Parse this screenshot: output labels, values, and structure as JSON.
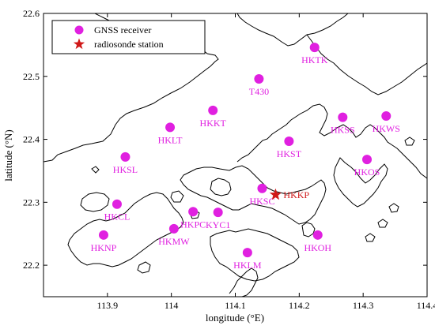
{
  "map": {
    "xlabel": "longitude (°E)",
    "ylabel": "latitude (°N)",
    "xlim": [
      113.8,
      114.4
    ],
    "ylim": [
      22.15,
      22.6
    ],
    "x_ticks": [
      "113.9",
      "114",
      "114.1",
      "114.2",
      "114.3",
      "114.4"
    ],
    "x_tick_values": [
      113.9,
      114.0,
      114.1,
      114.2,
      114.3,
      114.4
    ],
    "y_ticks": [
      "22.2",
      "22.3",
      "22.4",
      "22.5",
      "22.6"
    ],
    "y_tick_values": [
      22.2,
      22.3,
      22.4,
      22.5,
      22.6
    ],
    "legend": {
      "placement": "top-left",
      "gnss_label": "GNSS receiver",
      "radiosonde_label": "radiosonde station"
    },
    "colors": {
      "gnss_marker": "#e020e0",
      "radiosonde_marker": "#d01818",
      "coastline": "#000000"
    },
    "gnss_stations": [
      {
        "name": "HKTK",
        "lon": 114.224,
        "lat": 22.546
      },
      {
        "name": "T430",
        "lon": 114.137,
        "lat": 22.496
      },
      {
        "name": "HKKT",
        "lon": 114.065,
        "lat": 22.446
      },
      {
        "name": "HKLT",
        "lon": 113.998,
        "lat": 22.419
      },
      {
        "name": "HKSS",
        "lon": 114.268,
        "lat": 22.435
      },
      {
        "name": "HKWS",
        "lon": 114.336,
        "lat": 22.437
      },
      {
        "name": "HKST",
        "lon": 114.184,
        "lat": 22.397
      },
      {
        "name": "HKSL",
        "lon": 113.928,
        "lat": 22.372
      },
      {
        "name": "HKOS",
        "lon": 114.306,
        "lat": 22.368
      },
      {
        "name": "HKSC",
        "lon": 114.142,
        "lat": 22.322
      },
      {
        "name": "HKCL",
        "lon": 113.915,
        "lat": 22.297
      },
      {
        "name": "HKPC",
        "lon": 114.034,
        "lat": 22.285
      },
      {
        "name": "KYC1",
        "lon": 114.073,
        "lat": 22.284
      },
      {
        "name": "HKMW",
        "lon": 114.004,
        "lat": 22.258
      },
      {
        "name": "HKNP",
        "lon": 113.894,
        "lat": 22.248
      },
      {
        "name": "HKOH",
        "lon": 114.229,
        "lat": 22.248
      },
      {
        "name": "HKLM",
        "lon": 114.119,
        "lat": 22.22
      }
    ],
    "radiosonde_stations": [
      {
        "name": "HKKP",
        "lon": 114.163,
        "lat": 22.312
      }
    ]
  }
}
